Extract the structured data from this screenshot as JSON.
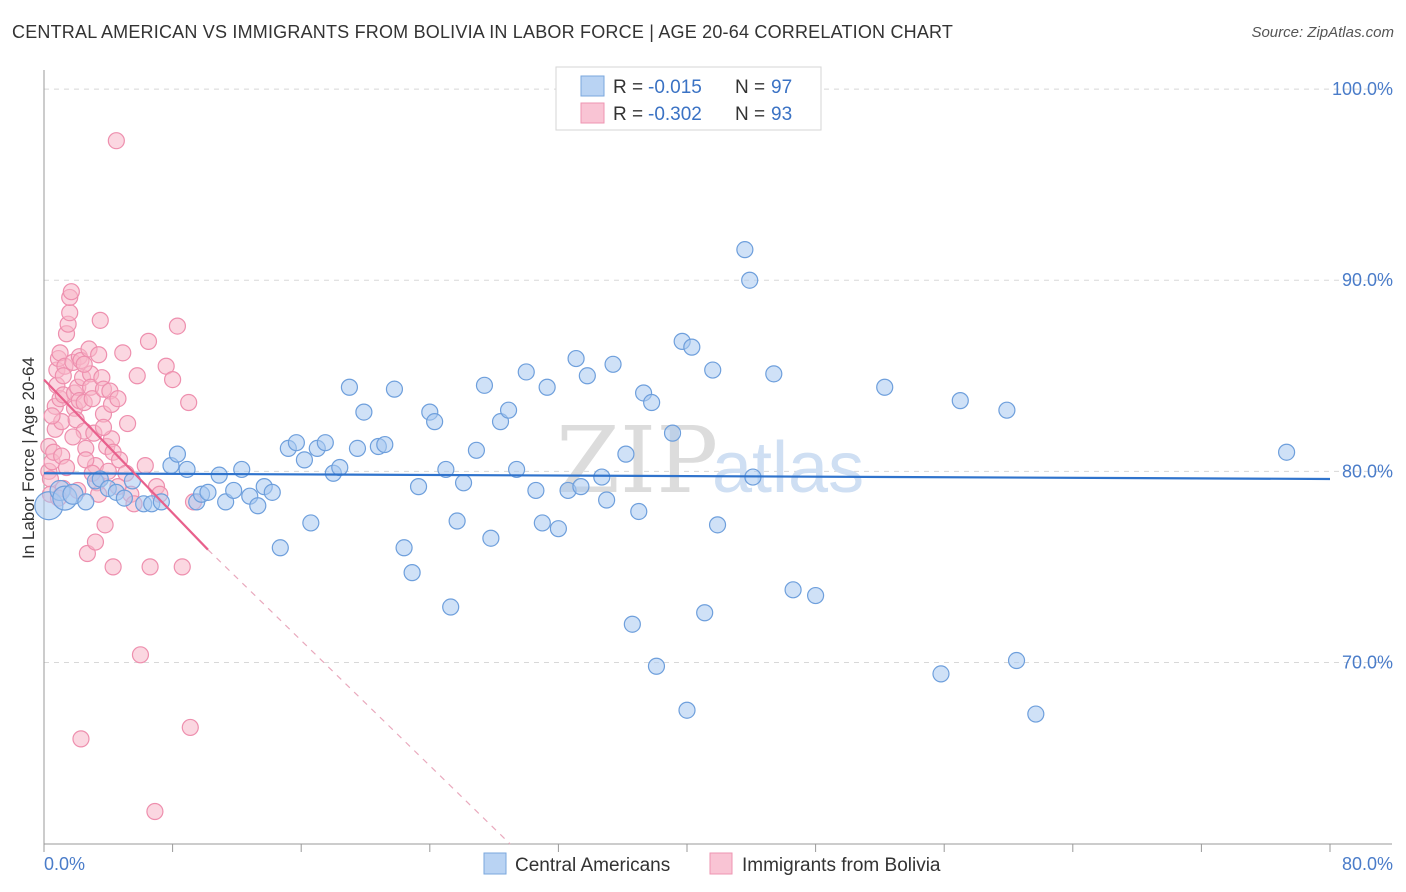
{
  "title": "CENTRAL AMERICAN VS IMMIGRANTS FROM BOLIVIA IN LABOR FORCE | AGE 20-64 CORRELATION CHART",
  "source": "Source: ZipAtlas.com",
  "watermark": {
    "zip": "ZIP",
    "atlas": "atlas"
  },
  "colors": {
    "blue_fill": "#a8c8f0",
    "blue_stroke": "#6e9fdc",
    "blue_line": "#2f73cc",
    "pink_fill": "#f7b6c9",
    "pink_stroke": "#ee8fae",
    "pink_line": "#e8608c",
    "grid": "#d8d8d8",
    "axis_text": "#4a7cc9"
  },
  "legend": {
    "rows": [
      {
        "r_label": "R = ",
        "r_value": "-0.015",
        "n_label": "N = ",
        "n_value": "97"
      },
      {
        "r_label": "R = ",
        "r_value": "-0.302",
        "n_label": "N = ",
        "n_value": "93"
      }
    ]
  },
  "chart_data": {
    "type": "scatter",
    "xlabel": "",
    "ylabel": "In Labor Force | Age 20-64",
    "xlim": [
      0,
      80
    ],
    "ylim": [
      60.5,
      101
    ],
    "x_tick_labels": [
      "0.0%",
      "80.0%"
    ],
    "y_ticks": [
      70,
      80,
      90,
      100
    ],
    "y_tick_labels": [
      "70.0%",
      "80.0%",
      "90.0%",
      "100.0%"
    ],
    "series": [
      {
        "name": "Central Americans",
        "color": "blue",
        "r": -0.015,
        "n": 97,
        "trend": {
          "x0": 0,
          "y0": 79.9,
          "x1": 80,
          "y1": 79.6
        },
        "points": [
          [
            0.3,
            78.2,
            14
          ],
          [
            1.0,
            79.0,
            10
          ],
          [
            1.3,
            78.6,
            12
          ],
          [
            1.8,
            78.8,
            10
          ],
          [
            2.6,
            78.4,
            8
          ],
          [
            3.2,
            79.5,
            8
          ],
          [
            3.5,
            79.6,
            8
          ],
          [
            4.0,
            79.1,
            8
          ],
          [
            4.5,
            78.9,
            8
          ],
          [
            5.0,
            78.6,
            8
          ],
          [
            5.5,
            79.5,
            8
          ],
          [
            6.2,
            78.3,
            8
          ],
          [
            6.7,
            78.3,
            8
          ],
          [
            7.3,
            78.4,
            8
          ],
          [
            7.9,
            80.3,
            8
          ],
          [
            8.3,
            80.9,
            8
          ],
          [
            8.9,
            80.1,
            8
          ],
          [
            9.5,
            78.4,
            8
          ],
          [
            9.8,
            78.8,
            8
          ],
          [
            10.2,
            78.9,
            8
          ],
          [
            10.9,
            79.8,
            8
          ],
          [
            11.3,
            78.4,
            8
          ],
          [
            11.8,
            79.0,
            8
          ],
          [
            12.3,
            80.1,
            8
          ],
          [
            12.8,
            78.7,
            8
          ],
          [
            13.3,
            78.2,
            8
          ],
          [
            13.7,
            79.2,
            8
          ],
          [
            14.2,
            78.9,
            8
          ],
          [
            14.7,
            76.0,
            8
          ],
          [
            15.2,
            81.2,
            8
          ],
          [
            15.7,
            81.5,
            8
          ],
          [
            16.2,
            80.6,
            8
          ],
          [
            16.6,
            77.3,
            8
          ],
          [
            17.0,
            81.2,
            8
          ],
          [
            17.5,
            81.5,
            8
          ],
          [
            18.0,
            79.9,
            8
          ],
          [
            18.4,
            80.2,
            8
          ],
          [
            19.0,
            84.4,
            8
          ],
          [
            19.5,
            81.2,
            8
          ],
          [
            19.9,
            83.1,
            8
          ],
          [
            20.8,
            81.3,
            8
          ],
          [
            21.2,
            81.4,
            8
          ],
          [
            21.8,
            84.3,
            8
          ],
          [
            22.4,
            76.0,
            8
          ],
          [
            22.9,
            74.7,
            8
          ],
          [
            23.3,
            79.2,
            8
          ],
          [
            24.0,
            83.1,
            8
          ],
          [
            24.3,
            82.6,
            8
          ],
          [
            25.0,
            80.1,
            8
          ],
          [
            25.3,
            72.9,
            8
          ],
          [
            25.7,
            77.4,
            8
          ],
          [
            26.1,
            79.4,
            8
          ],
          [
            26.9,
            81.1,
            8
          ],
          [
            27.4,
            84.5,
            8
          ],
          [
            27.8,
            76.5,
            8
          ],
          [
            28.4,
            82.6,
            8
          ],
          [
            28.9,
            83.2,
            8
          ],
          [
            29.4,
            80.1,
            8
          ],
          [
            30.0,
            85.2,
            8
          ],
          [
            30.6,
            79.0,
            8
          ],
          [
            31.0,
            77.3,
            8
          ],
          [
            31.3,
            84.4,
            8
          ],
          [
            32.0,
            77.0,
            8
          ],
          [
            32.6,
            79.0,
            8
          ],
          [
            33.1,
            85.9,
            8
          ],
          [
            33.4,
            79.2,
            8
          ],
          [
            33.8,
            85.0,
            8
          ],
          [
            34.7,
            79.7,
            8
          ],
          [
            35.0,
            78.5,
            8
          ],
          [
            35.4,
            85.6,
            8
          ],
          [
            36.2,
            80.9,
            8
          ],
          [
            36.6,
            72.0,
            8
          ],
          [
            37.0,
            77.9,
            8
          ],
          [
            37.3,
            84.1,
            8
          ],
          [
            37.8,
            83.6,
            8
          ],
          [
            38.1,
            69.8,
            8
          ],
          [
            39.1,
            82.0,
            8
          ],
          [
            39.7,
            86.8,
            8
          ],
          [
            40.0,
            67.5,
            8
          ],
          [
            40.3,
            86.5,
            8
          ],
          [
            41.1,
            72.6,
            8
          ],
          [
            41.6,
            85.3,
            8
          ],
          [
            41.9,
            77.2,
            8
          ],
          [
            43.6,
            91.6,
            8
          ],
          [
            43.9,
            90.0,
            8
          ],
          [
            44.1,
            79.7,
            8
          ],
          [
            45.4,
            85.1,
            8
          ],
          [
            46.6,
            73.8,
            8
          ],
          [
            48.0,
            73.5,
            8
          ],
          [
            52.3,
            84.4,
            8
          ],
          [
            55.8,
            69.4,
            8
          ],
          [
            57.0,
            83.7,
            8
          ],
          [
            59.9,
            83.2,
            8
          ],
          [
            60.5,
            70.1,
            8
          ],
          [
            61.7,
            67.3,
            8
          ],
          [
            77.3,
            81.0,
            8
          ]
        ]
      },
      {
        "name": "Immigrants from Bolivia",
        "color": "pink",
        "r": -0.302,
        "n": 93,
        "trend": {
          "x0": 0,
          "y0": 84.8,
          "x1": 10.2,
          "y1": 75.9
        },
        "trend_ext": {
          "x0": 10.2,
          "y0": 75.9,
          "x1": 29,
          "y1": 60.5
        },
        "points": [
          [
            0.3,
            80.0,
            8
          ],
          [
            0.3,
            81.3,
            8
          ],
          [
            0.4,
            79.6,
            8
          ],
          [
            0.4,
            78.8,
            8
          ],
          [
            0.5,
            80.5,
            8
          ],
          [
            0.6,
            81.0,
            8
          ],
          [
            0.7,
            82.2,
            8
          ],
          [
            0.7,
            83.4,
            8
          ],
          [
            0.8,
            84.5,
            8
          ],
          [
            0.8,
            85.3,
            8
          ],
          [
            0.9,
            85.9,
            8
          ],
          [
            1.0,
            86.2,
            8
          ],
          [
            1.0,
            83.8,
            8
          ],
          [
            1.1,
            82.6,
            8
          ],
          [
            1.1,
            80.8,
            8
          ],
          [
            1.2,
            79.1,
            8
          ],
          [
            1.2,
            84.0,
            8
          ],
          [
            1.3,
            85.5,
            8
          ],
          [
            1.4,
            87.2,
            8
          ],
          [
            1.5,
            87.7,
            8
          ],
          [
            1.6,
            88.3,
            8
          ],
          [
            1.6,
            89.1,
            8
          ],
          [
            1.7,
            89.4,
            8
          ],
          [
            1.8,
            85.7,
            8
          ],
          [
            1.9,
            84.1,
            8
          ],
          [
            1.9,
            83.3,
            8
          ],
          [
            2.0,
            82.7,
            8
          ],
          [
            2.1,
            84.4,
            8
          ],
          [
            2.2,
            83.7,
            8
          ],
          [
            2.2,
            86.0,
            8
          ],
          [
            2.3,
            85.8,
            8
          ],
          [
            2.4,
            84.9,
            8
          ],
          [
            2.5,
            83.6,
            8
          ],
          [
            2.5,
            82.1,
            8
          ],
          [
            2.6,
            81.2,
            8
          ],
          [
            2.7,
            75.7,
            8
          ],
          [
            2.8,
            86.4,
            8
          ],
          [
            2.9,
            85.1,
            8
          ],
          [
            2.9,
            84.4,
            8
          ],
          [
            3.0,
            83.8,
            8
          ],
          [
            3.1,
            82.0,
            8
          ],
          [
            3.2,
            80.3,
            8
          ],
          [
            3.2,
            76.3,
            8
          ],
          [
            3.3,
            79.4,
            8
          ],
          [
            3.4,
            78.8,
            8
          ],
          [
            3.5,
            87.9,
            8
          ],
          [
            3.6,
            84.9,
            8
          ],
          [
            3.7,
            84.3,
            8
          ],
          [
            3.7,
            83.0,
            8
          ],
          [
            3.8,
            77.2,
            8
          ],
          [
            3.9,
            81.3,
            8
          ],
          [
            4.0,
            80.0,
            8
          ],
          [
            4.1,
            84.2,
            8
          ],
          [
            4.2,
            83.5,
            8
          ],
          [
            4.2,
            81.7,
            8
          ],
          [
            4.3,
            81.0,
            8
          ],
          [
            4.3,
            75.0,
            8
          ],
          [
            4.5,
            97.3,
            8
          ],
          [
            4.6,
            83.8,
            8
          ],
          [
            4.7,
            80.6,
            8
          ],
          [
            4.9,
            86.2,
            8
          ],
          [
            5.1,
            79.9,
            8
          ],
          [
            5.4,
            78.8,
            8
          ],
          [
            5.6,
            78.3,
            8
          ],
          [
            5.8,
            85.0,
            8
          ],
          [
            6.0,
            70.4,
            8
          ],
          [
            6.3,
            80.3,
            8
          ],
          [
            6.5,
            86.8,
            8
          ],
          [
            6.6,
            75.0,
            8
          ],
          [
            7.0,
            79.2,
            8
          ],
          [
            7.2,
            78.8,
            8
          ],
          [
            7.6,
            85.5,
            8
          ],
          [
            8.0,
            84.8,
            8
          ],
          [
            8.3,
            87.6,
            8
          ],
          [
            8.6,
            75.0,
            8
          ],
          [
            9.0,
            83.6,
            8
          ],
          [
            9.3,
            78.4,
            8
          ],
          [
            2.3,
            66.0,
            8
          ],
          [
            6.9,
            62.2,
            8
          ],
          [
            9.1,
            66.6,
            8
          ],
          [
            0.5,
            82.9,
            8
          ],
          [
            1.4,
            80.2,
            8
          ],
          [
            2.1,
            79.0,
            8
          ],
          [
            2.6,
            80.6,
            8
          ],
          [
            3.0,
            79.9,
            8
          ],
          [
            1.8,
            81.8,
            8
          ],
          [
            0.9,
            78.6,
            8
          ],
          [
            4.6,
            79.2,
            8
          ],
          [
            5.2,
            82.5,
            8
          ],
          [
            2.5,
            85.6,
            8
          ],
          [
            3.4,
            86.1,
            8
          ],
          [
            1.2,
            85.0,
            8
          ],
          [
            3.7,
            82.3,
            8
          ]
        ]
      }
    ]
  }
}
